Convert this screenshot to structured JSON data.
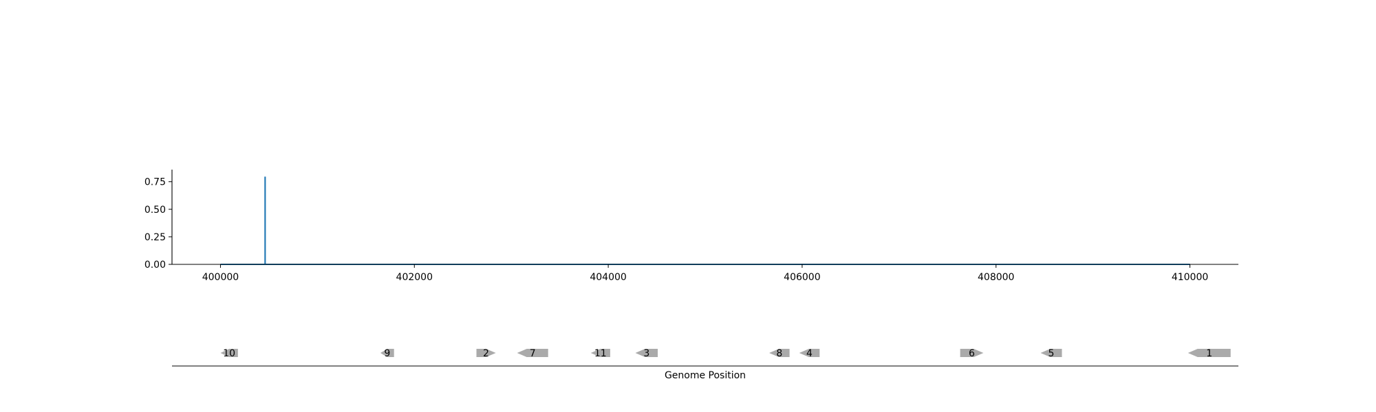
{
  "chart_data": [
    {
      "type": "line",
      "title": "",
      "xlabel": "",
      "ylabel": "",
      "xlim": [
        399500,
        410500
      ],
      "ylim": [
        0,
        0.86
      ],
      "grid": false,
      "x_ticks": [
        400000,
        402000,
        404000,
        406000,
        408000,
        410000
      ],
      "x_tick_labels": [
        "400000",
        "402000",
        "404000",
        "406000",
        "408000",
        "410000"
      ],
      "y_ticks": [
        0,
        0.25,
        0.5,
        0.75
      ],
      "y_tick_labels": [
        "0.00",
        "0.25",
        "0.50",
        "0.75"
      ],
      "series": [
        {
          "color": "#1f77b4",
          "x": [
            400000,
            400460,
            400460,
            400461,
            400461,
            410000
          ],
          "y": [
            0,
            0,
            0.79,
            0.79,
            0,
            0
          ]
        }
      ]
    },
    {
      "type": "gene-track",
      "xlabel": "Genome Position",
      "xlim": [
        399500,
        410500
      ],
      "color": "#aaaaaa",
      "genes": [
        {
          "label": "10",
          "start": 400000,
          "end": 400180,
          "strand": "-"
        },
        {
          "label": "9",
          "start": 401650,
          "end": 401790,
          "strand": "-"
        },
        {
          "label": "2",
          "start": 402640,
          "end": 402840,
          "strand": "+"
        },
        {
          "label": "7",
          "start": 403060,
          "end": 403380,
          "strand": "-"
        },
        {
          "label": "11",
          "start": 403820,
          "end": 404020,
          "strand": "-"
        },
        {
          "label": "3",
          "start": 404280,
          "end": 404510,
          "strand": "-"
        },
        {
          "label": "8",
          "start": 405660,
          "end": 405870,
          "strand": "-"
        },
        {
          "label": "4",
          "start": 405970,
          "end": 406180,
          "strand": "-"
        },
        {
          "label": "6",
          "start": 407630,
          "end": 407870,
          "strand": "+"
        },
        {
          "label": "5",
          "start": 408460,
          "end": 408680,
          "strand": "-"
        },
        {
          "label": "1",
          "start": 409980,
          "end": 410420,
          "strand": "-"
        }
      ]
    }
  ]
}
